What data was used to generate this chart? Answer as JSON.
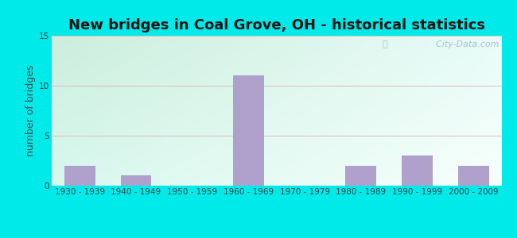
{
  "title": "New bridges in Coal Grove, OH - historical statistics",
  "categories": [
    "1930 - 1939",
    "1940 - 1949",
    "1950 - 1959",
    "1960 - 1969",
    "1970 - 1979",
    "1980 - 1989",
    "1990 - 1999",
    "2000 - 2009"
  ],
  "values": [
    2,
    1,
    0,
    11,
    0,
    2,
    3,
    2
  ],
  "bar_color": "#b0a0cc",
  "outer_bg": "#00eaea",
  "ylabel": "number of bridges",
  "ylim": [
    0,
    15
  ],
  "yticks": [
    0,
    5,
    10,
    15
  ],
  "title_fontsize": 13,
  "ylabel_fontsize": 9,
  "tick_fontsize": 7.5,
  "grid_color": "#ddbbbb",
  "watermark": "  City-Data.com",
  "watermark_icon": "@",
  "bar_width": 0.55
}
